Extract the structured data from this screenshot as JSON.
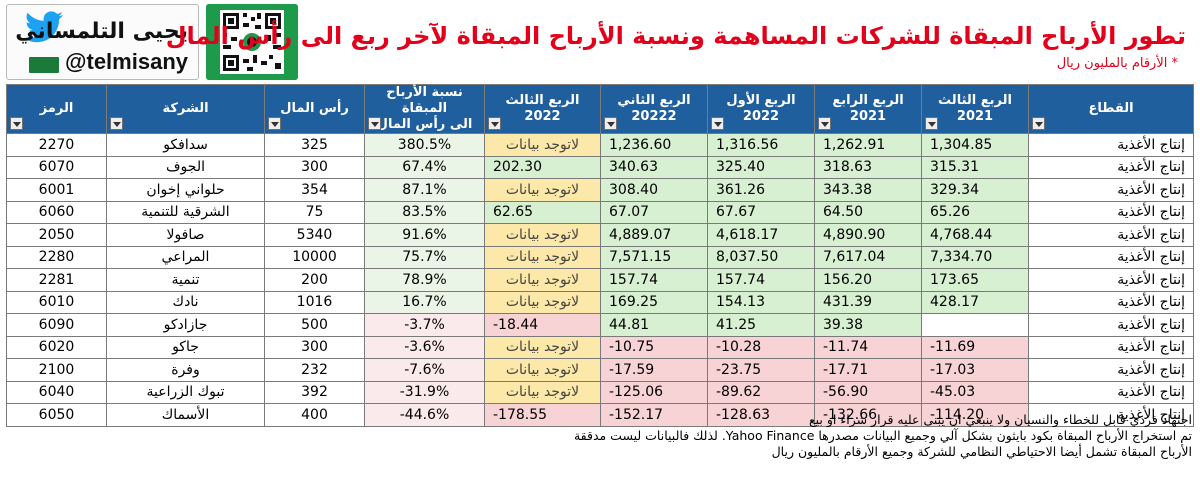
{
  "brand": {
    "name": "يحيى التلمساني",
    "handle": "@telmisany",
    "icons": {
      "social": "twitter-bird-icon",
      "qr": "qr-code-icon",
      "flag": "saudi-flag-icon"
    },
    "colors": {
      "twitter": "#1da1f2",
      "qr": "#1e9a4b"
    }
  },
  "title": "تطور الأرباح المبقاة للشركات المساهمة ونسبة الأرباح المبقاة لآخر ربع الى رأس المال",
  "subtitle": "* الأرقام بالمليون ريال",
  "colors": {
    "header_bg": "#1f5f9e",
    "title": "#e3001b",
    "positive": "#d8f0d2",
    "negative": "#f7d3d6",
    "no_data": "#fce8a8"
  },
  "table": {
    "headers": {
      "sector": "القطاع",
      "q3_2021": [
        "الربع الثالث",
        "2021"
      ],
      "q4_2021": [
        "الربع الرابع",
        "2021"
      ],
      "q1_2022": [
        "الربع الأول",
        "2022"
      ],
      "q2_2022": [
        "الربع الثاني",
        "20222"
      ],
      "q3_2022": [
        "الربع الثالث",
        "2022"
      ],
      "ratio": [
        "نسبة الأرباح المبقاة",
        "الى رأس المال"
      ],
      "capital": "رأس المال",
      "company": "الشركة",
      "symbol": "الرمز"
    },
    "rows": [
      {
        "sector": "إنتاج الأغذية",
        "q3_2021": "1,304.85",
        "q4_2021": "1,262.91",
        "q1_2022": "1,316.56",
        "q2_2022": "1,236.60",
        "q3_2022": "لاتوجد بيانات",
        "ratio": "380.5%",
        "capital": "325",
        "company": "سدافكو",
        "symbol": "2270"
      },
      {
        "sector": "إنتاج الأغذية",
        "q3_2021": "315.31",
        "q4_2021": "318.63",
        "q1_2022": "325.40",
        "q2_2022": "340.63",
        "q3_2022": "202.30",
        "ratio": "67.4%",
        "capital": "300",
        "company": "الجوف",
        "symbol": "6070"
      },
      {
        "sector": "إنتاج الأغذية",
        "q3_2021": "329.34",
        "q4_2021": "343.38",
        "q1_2022": "361.26",
        "q2_2022": "308.40",
        "q3_2022": "لاتوجد بيانات",
        "ratio": "87.1%",
        "capital": "354",
        "company": "حلواني إخوان",
        "symbol": "6001"
      },
      {
        "sector": "إنتاج الأغذية",
        "q3_2021": "65.26",
        "q4_2021": "64.50",
        "q1_2022": "67.67",
        "q2_2022": "67.07",
        "q3_2022": "62.65",
        "ratio": "83.5%",
        "capital": "75",
        "company": "الشرقية للتنمية",
        "symbol": "6060"
      },
      {
        "sector": "إنتاج الأغذية",
        "q3_2021": "4,768.44",
        "q4_2021": "4,890.90",
        "q1_2022": "4,618.17",
        "q2_2022": "4,889.07",
        "q3_2022": "لاتوجد بيانات",
        "ratio": "91.6%",
        "capital": "5340",
        "company": "صافولا",
        "symbol": "2050"
      },
      {
        "sector": "إنتاج الأغذية",
        "q3_2021": "7,334.70",
        "q4_2021": "7,617.04",
        "q1_2022": "8,037.50",
        "q2_2022": "7,571.15",
        "q3_2022": "لاتوجد بيانات",
        "ratio": "75.7%",
        "capital": "10000",
        "company": "المراعي",
        "symbol": "2280"
      },
      {
        "sector": "إنتاج الأغذية",
        "q3_2021": "173.65",
        "q4_2021": "156.20",
        "q1_2022": "157.74",
        "q2_2022": "157.74",
        "q3_2022": "لاتوجد بيانات",
        "ratio": "78.9%",
        "capital": "200",
        "company": "تنمية",
        "symbol": "2281"
      },
      {
        "sector": "إنتاج الأغذية",
        "q3_2021": "428.17",
        "q4_2021": "431.39",
        "q1_2022": "154.13",
        "q2_2022": "169.25",
        "q3_2022": "لاتوجد بيانات",
        "ratio": "16.7%",
        "capital": "1016",
        "company": "نادك",
        "symbol": "6010"
      },
      {
        "sector": "إنتاج الأغذية",
        "q3_2021": "",
        "q4_2021": "39.38",
        "q1_2022": "41.25",
        "q2_2022": "44.81",
        "q3_2022": "-18.44",
        "ratio": "-3.7%",
        "capital": "500",
        "company": "جازادكو",
        "symbol": "6090"
      },
      {
        "sector": "إنتاج الأغذية",
        "q3_2021": "-11.69",
        "q4_2021": "-11.74",
        "q1_2022": "-10.28",
        "q2_2022": "-10.75",
        "q3_2022": "لاتوجد بيانات",
        "ratio": "-3.6%",
        "capital": "300",
        "company": "جاكو",
        "symbol": "6020"
      },
      {
        "sector": "إنتاج الأغذية",
        "q3_2021": "-17.03",
        "q4_2021": "-17.71",
        "q1_2022": "-23.75",
        "q2_2022": "-17.59",
        "q3_2022": "لاتوجد بيانات",
        "ratio": "-7.6%",
        "capital": "232",
        "company": "وفرة",
        "symbol": "2100"
      },
      {
        "sector": "إنتاج الأغذية",
        "q3_2021": "-45.03",
        "q4_2021": "-56.90",
        "q1_2022": "-89.62",
        "q2_2022": "-125.06",
        "q3_2022": "لاتوجد بيانات",
        "ratio": "-31.9%",
        "capital": "392",
        "company": "تبوك الزراعية",
        "symbol": "6040"
      },
      {
        "sector": "إنتاج الأغذية",
        "q3_2021": "-114.20",
        "q4_2021": "-132.66",
        "q1_2022": "-128.63",
        "q2_2022": "-152.17",
        "q3_2022": "-178.55",
        "ratio": "-44.6%",
        "capital": "400",
        "company": "الأسماك",
        "symbol": "6050"
      }
    ]
  },
  "notes": [
    "اجتهاد فردي قابل للخطاء والنسيان ولا ينبغي ان يبنى عليه قرار شراء او بيع",
    "تم استخراج الأرباح المبقاة بكود بايثون بشكل آلي وجميع البيانات مصدرها Yahoo Finance. لذلك فالبيانات ليست مدققة",
    "الأرباح المبقاة تشمل أيضا الاحتياطي النظامي للشركة وجميع الأرقام بالمليون ريال"
  ]
}
